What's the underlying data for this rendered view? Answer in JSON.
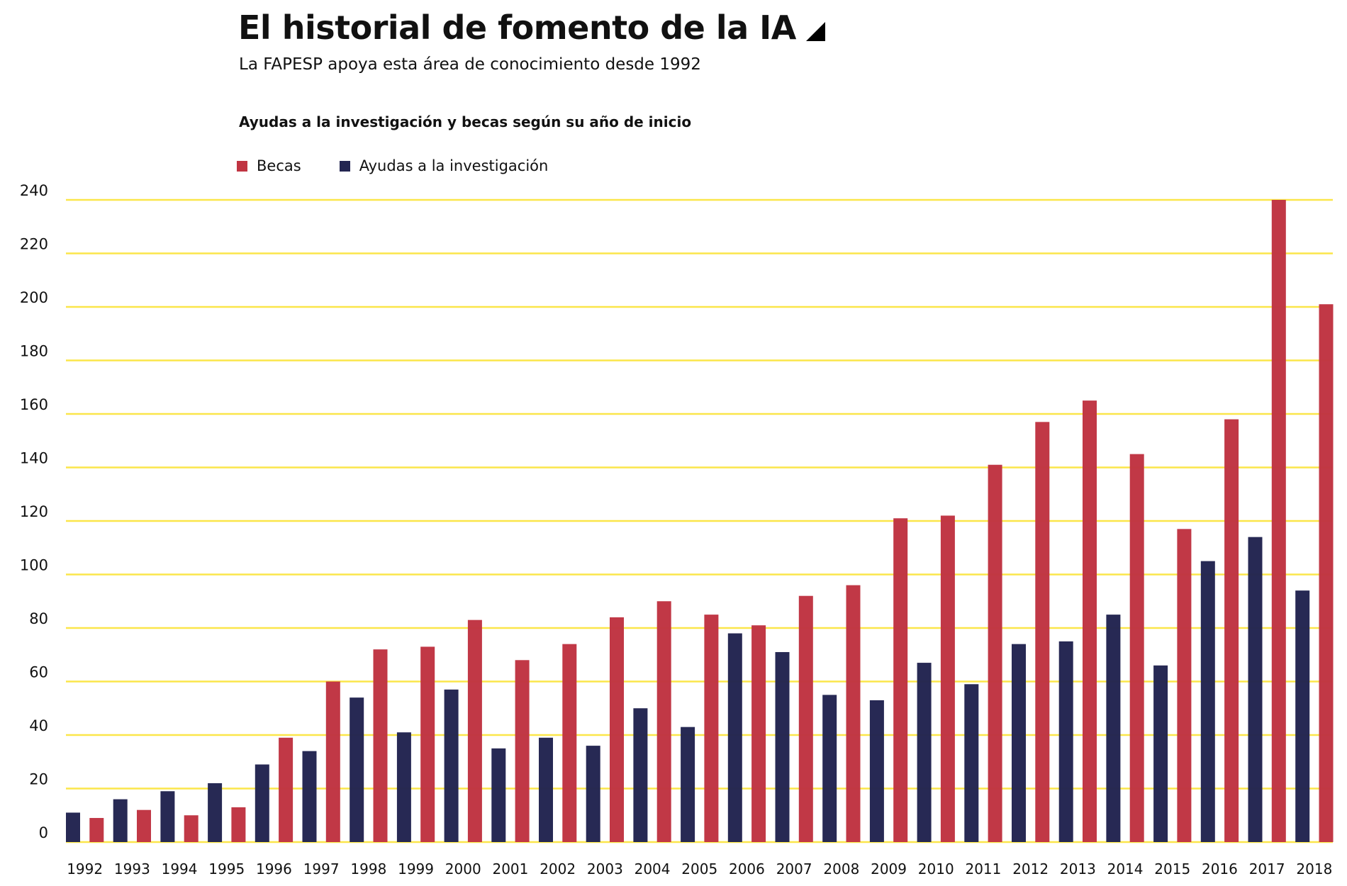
{
  "header": {
    "title": "El historial de fomento de la IA",
    "subtitle": "La FAPESP apoya esta área de conocimiento desde 1992",
    "section_title": "Ayudas a la investigación y becas según su año de inicio",
    "title_icon": "black-triangle-icon"
  },
  "legend": [
    {
      "label": "Becas",
      "color": "#c03442"
    },
    {
      "label": "Ayudas a la investigación",
      "color": "#232551"
    }
  ],
  "colors": {
    "becas": "#c03442",
    "ayudas": "#232551",
    "grid": "#fbe64a"
  },
  "chart_data": {
    "type": "bar",
    "title": "Ayudas a la investigación y becas según su año de inicio",
    "xlabel": "",
    "ylabel": "",
    "ylim": [
      0,
      240
    ],
    "yticks": [
      0,
      20,
      40,
      60,
      80,
      100,
      120,
      140,
      160,
      180,
      200,
      220,
      240
    ],
    "grid": true,
    "legend_position": "top-left",
    "categories": [
      "1992",
      "1993",
      "1994",
      "1995",
      "1996",
      "1997",
      "1998",
      "1999",
      "2000",
      "2001",
      "2002",
      "2003",
      "2004",
      "2005",
      "2006",
      "2007",
      "2008",
      "2009",
      "2010",
      "2011",
      "2012",
      "2013",
      "2014",
      "2015",
      "2016",
      "2017",
      "2018"
    ],
    "series": [
      {
        "name": "Ayudas a la investigación",
        "color": "#232551",
        "values": [
          11,
          16,
          19,
          22,
          29,
          34,
          54,
          41,
          57,
          35,
          39,
          36,
          50,
          43,
          78,
          71,
          55,
          53,
          67,
          59,
          74,
          75,
          85,
          66,
          105,
          114,
          94
        ]
      },
      {
        "name": "Becas",
        "color": "#c03442",
        "values": [
          9,
          12,
          10,
          13,
          39,
          60,
          72,
          73,
          83,
          68,
          74,
          84,
          90,
          85,
          81,
          92,
          96,
          121,
          122,
          141,
          157,
          165,
          145,
          117,
          158,
          240,
          201
        ]
      }
    ]
  }
}
